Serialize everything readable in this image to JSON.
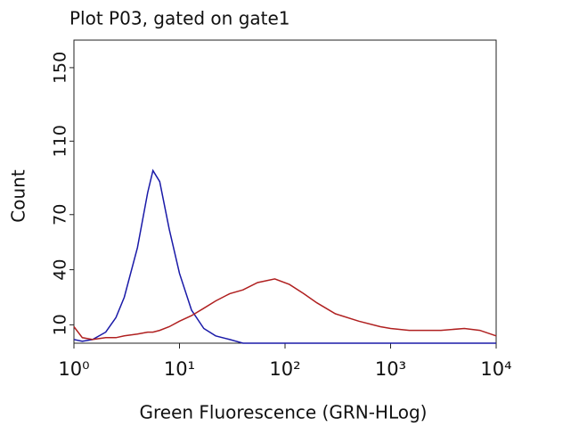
{
  "chart_data": {
    "type": "line",
    "title": "Plot P03, gated on gate1",
    "x_label": "Green Fluorescence (GRN-HLog)",
    "y_label": "Count",
    "x_scale": "log",
    "x": [
      1,
      1.2,
      1.5,
      2,
      2.5,
      3,
      4,
      5,
      5.6,
      6.5,
      8,
      10,
      13,
      17,
      22,
      30,
      40,
      55,
      80,
      110,
      150,
      200,
      300,
      500,
      800,
      1000,
      1500,
      2000,
      3000,
      5000,
      7000,
      10000
    ],
    "series": [
      {
        "name": "blue",
        "color": "#1a1aa8",
        "values": [
          2,
          1,
          2,
          6,
          14,
          25,
          52,
          82,
          94,
          88,
          62,
          38,
          18,
          8,
          4,
          2,
          0,
          0,
          0,
          0,
          0,
          0,
          0,
          0,
          0,
          0,
          0,
          0,
          0,
          0,
          0,
          0
        ]
      },
      {
        "name": "red",
        "color": "#b02020",
        "values": [
          9,
          3,
          2,
          3,
          3,
          4,
          5,
          6,
          6,
          7,
          9,
          12,
          15,
          19,
          23,
          27,
          29,
          33,
          35,
          32,
          27,
          22,
          16,
          12,
          9,
          8,
          7,
          7,
          7,
          8,
          7,
          4
        ]
      }
    ],
    "xlim": [
      1,
      10000
    ],
    "xticks": [
      {
        "value": 1,
        "label": "10⁰"
      },
      {
        "value": 10,
        "label": "10¹"
      },
      {
        "value": 100,
        "label": "10²"
      },
      {
        "value": 1000,
        "label": "10³"
      },
      {
        "value": 10000,
        "label": "10⁴"
      }
    ],
    "ylim": [
      0,
      165
    ],
    "yticks": [
      10,
      40,
      70,
      110,
      150
    ]
  }
}
